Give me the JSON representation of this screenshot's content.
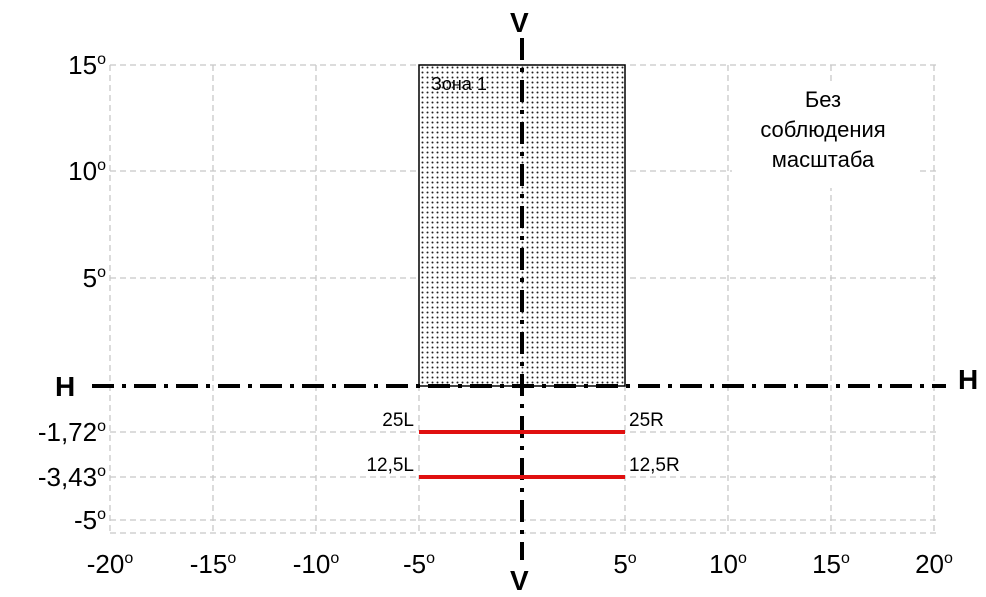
{
  "diagram": {
    "y_ticks": [
      {
        "value": 15,
        "label": "15"
      },
      {
        "value": 10,
        "label": "10"
      },
      {
        "value": 5,
        "label": "5"
      },
      {
        "value": -1.72,
        "label": "-1,72"
      },
      {
        "value": -3.43,
        "label": "-3,43"
      },
      {
        "value": -5,
        "label": "-5"
      }
    ],
    "x_ticks": [
      {
        "value": -20,
        "label": "-20"
      },
      {
        "value": -15,
        "label": "-15"
      },
      {
        "value": -10,
        "label": "-10"
      },
      {
        "value": -5,
        "label": "-5"
      },
      {
        "value": 5,
        "label": "5"
      },
      {
        "value": 10,
        "label": "10"
      },
      {
        "value": 15,
        "label": "15"
      },
      {
        "value": 20,
        "label": "20"
      }
    ],
    "degree_symbol": "o",
    "v_label_top": "V",
    "v_label_bottom": "V",
    "h_label_left": "H",
    "h_label_right": "H",
    "zone": {
      "label": "Зона 1",
      "x_from": -5,
      "x_to": 5,
      "y_from": 0,
      "y_to": 15
    },
    "note_lines": [
      "Без",
      "соблюдения",
      "масштаба"
    ],
    "red_lines": [
      {
        "y": -1.72,
        "x_from": -5,
        "x_to": 5,
        "label_left": "25L",
        "label_right": "25R"
      },
      {
        "y": -3.43,
        "x_from": -5,
        "x_to": 5,
        "label_left": "12,5L",
        "label_right": "12,5R"
      }
    ],
    "colors": {
      "red_line": "#e01010",
      "grid": "#c8c8c8",
      "axis": "#000000"
    }
  }
}
